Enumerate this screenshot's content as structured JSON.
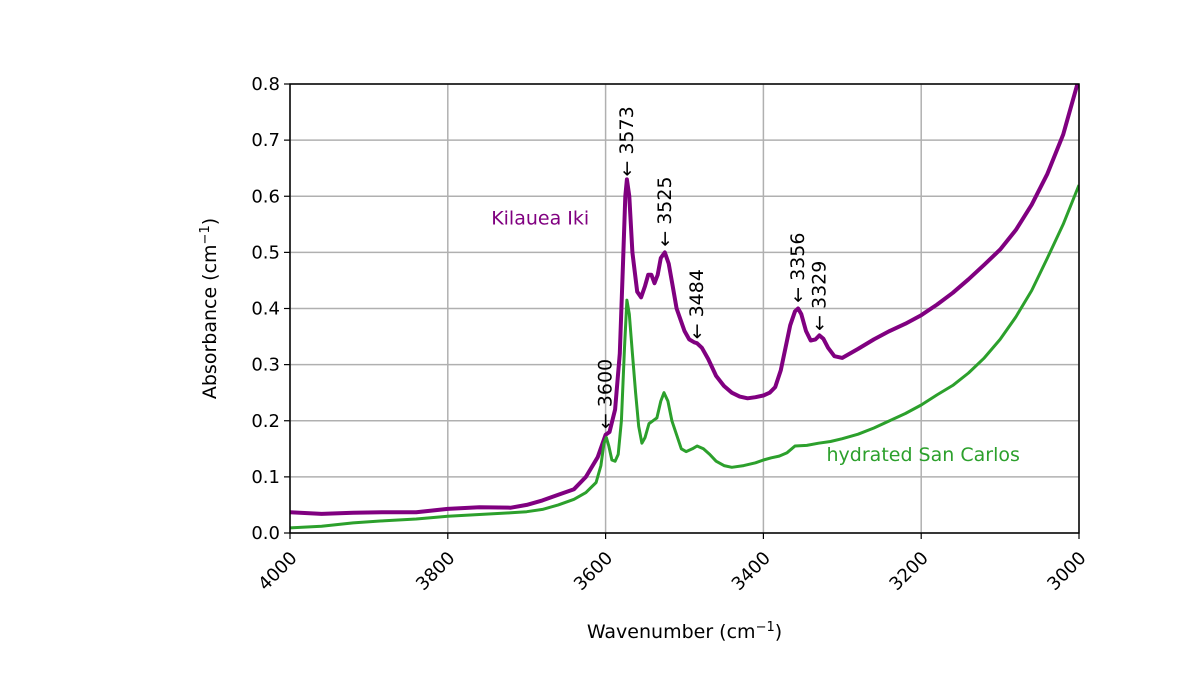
{
  "chart_data": {
    "type": "line",
    "title": "",
    "xlabel": "Wavenumber (cm",
    "xlabel_sup": "−1",
    "xlabel_close": ")",
    "ylabel": "Absorbance (cm",
    "ylabel_sup": "−1",
    "ylabel_close": ")",
    "xlim": [
      4000,
      3000
    ],
    "ylim": [
      0,
      0.8
    ],
    "x_ticks": [
      4000,
      3800,
      3600,
      3400,
      3200,
      3000
    ],
    "y_ticks": [
      0.0,
      0.1,
      0.2,
      0.3,
      0.4,
      0.5,
      0.6,
      0.7,
      0.8
    ],
    "y_tick_labels": [
      "0.0",
      "0.1",
      "0.2",
      "0.3",
      "0.4",
      "0.5",
      "0.6",
      "0.7",
      "0.8"
    ],
    "grid": true,
    "series": [
      {
        "name": "Kilauea Iki",
        "color": "#800080",
        "points": [
          [
            4000,
            0.037
          ],
          [
            3960,
            0.034
          ],
          [
            3920,
            0.036
          ],
          [
            3880,
            0.037
          ],
          [
            3840,
            0.037
          ],
          [
            3800,
            0.043
          ],
          [
            3760,
            0.046
          ],
          [
            3720,
            0.045
          ],
          [
            3700,
            0.05
          ],
          [
            3680,
            0.058
          ],
          [
            3660,
            0.068
          ],
          [
            3640,
            0.078
          ],
          [
            3625,
            0.1
          ],
          [
            3610,
            0.135
          ],
          [
            3600,
            0.175
          ],
          [
            3595,
            0.18
          ],
          [
            3588,
            0.22
          ],
          [
            3582,
            0.32
          ],
          [
            3578,
            0.48
          ],
          [
            3575,
            0.6
          ],
          [
            3573,
            0.63
          ],
          [
            3570,
            0.6
          ],
          [
            3566,
            0.5
          ],
          [
            3560,
            0.43
          ],
          [
            3555,
            0.42
          ],
          [
            3550,
            0.44
          ],
          [
            3546,
            0.46
          ],
          [
            3542,
            0.46
          ],
          [
            3538,
            0.445
          ],
          [
            3534,
            0.46
          ],
          [
            3530,
            0.49
          ],
          [
            3525,
            0.5
          ],
          [
            3520,
            0.48
          ],
          [
            3515,
            0.44
          ],
          [
            3510,
            0.4
          ],
          [
            3500,
            0.36
          ],
          [
            3494,
            0.345
          ],
          [
            3488,
            0.34
          ],
          [
            3484,
            0.338
          ],
          [
            3478,
            0.33
          ],
          [
            3470,
            0.31
          ],
          [
            3460,
            0.28
          ],
          [
            3450,
            0.262
          ],
          [
            3440,
            0.25
          ],
          [
            3430,
            0.243
          ],
          [
            3420,
            0.24
          ],
          [
            3410,
            0.242
          ],
          [
            3400,
            0.245
          ],
          [
            3392,
            0.25
          ],
          [
            3385,
            0.26
          ],
          [
            3378,
            0.29
          ],
          [
            3372,
            0.33
          ],
          [
            3366,
            0.37
          ],
          [
            3360,
            0.395
          ],
          [
            3356,
            0.4
          ],
          [
            3352,
            0.39
          ],
          [
            3346,
            0.36
          ],
          [
            3340,
            0.343
          ],
          [
            3334,
            0.345
          ],
          [
            3329,
            0.352
          ],
          [
            3324,
            0.346
          ],
          [
            3318,
            0.33
          ],
          [
            3310,
            0.315
          ],
          [
            3300,
            0.312
          ],
          [
            3280,
            0.328
          ],
          [
            3260,
            0.345
          ],
          [
            3240,
            0.36
          ],
          [
            3220,
            0.373
          ],
          [
            3200,
            0.388
          ],
          [
            3180,
            0.407
          ],
          [
            3160,
            0.428
          ],
          [
            3140,
            0.452
          ],
          [
            3120,
            0.478
          ],
          [
            3100,
            0.505
          ],
          [
            3080,
            0.54
          ],
          [
            3060,
            0.585
          ],
          [
            3040,
            0.64
          ],
          [
            3020,
            0.71
          ],
          [
            3000,
            0.81
          ]
        ]
      },
      {
        "name": "hydrated San Carlos",
        "color": "#2ca02c",
        "points": [
          [
            4000,
            0.009
          ],
          [
            3960,
            0.012
          ],
          [
            3920,
            0.018
          ],
          [
            3880,
            0.022
          ],
          [
            3840,
            0.025
          ],
          [
            3800,
            0.03
          ],
          [
            3760,
            0.033
          ],
          [
            3720,
            0.036
          ],
          [
            3700,
            0.038
          ],
          [
            3680,
            0.042
          ],
          [
            3660,
            0.05
          ],
          [
            3640,
            0.06
          ],
          [
            3625,
            0.072
          ],
          [
            3612,
            0.09
          ],
          [
            3606,
            0.12
          ],
          [
            3602,
            0.16
          ],
          [
            3599,
            0.17
          ],
          [
            3596,
            0.155
          ],
          [
            3592,
            0.13
          ],
          [
            3588,
            0.128
          ],
          [
            3584,
            0.14
          ],
          [
            3580,
            0.2
          ],
          [
            3576,
            0.33
          ],
          [
            3573,
            0.415
          ],
          [
            3570,
            0.39
          ],
          [
            3566,
            0.32
          ],
          [
            3562,
            0.25
          ],
          [
            3558,
            0.19
          ],
          [
            3554,
            0.16
          ],
          [
            3550,
            0.17
          ],
          [
            3545,
            0.195
          ],
          [
            3540,
            0.2
          ],
          [
            3535,
            0.205
          ],
          [
            3530,
            0.235
          ],
          [
            3526,
            0.25
          ],
          [
            3521,
            0.235
          ],
          [
            3516,
            0.2
          ],
          [
            3510,
            0.175
          ],
          [
            3504,
            0.15
          ],
          [
            3498,
            0.145
          ],
          [
            3490,
            0.15
          ],
          [
            3484,
            0.155
          ],
          [
            3476,
            0.15
          ],
          [
            3468,
            0.14
          ],
          [
            3460,
            0.128
          ],
          [
            3450,
            0.12
          ],
          [
            3440,
            0.117
          ],
          [
            3425,
            0.12
          ],
          [
            3410,
            0.125
          ],
          [
            3400,
            0.13
          ],
          [
            3390,
            0.134
          ],
          [
            3380,
            0.137
          ],
          [
            3370,
            0.143
          ],
          [
            3360,
            0.155
          ],
          [
            3345,
            0.156
          ],
          [
            3330,
            0.16
          ],
          [
            3315,
            0.163
          ],
          [
            3300,
            0.168
          ],
          [
            3280,
            0.176
          ],
          [
            3260,
            0.187
          ],
          [
            3240,
            0.2
          ],
          [
            3220,
            0.213
          ],
          [
            3200,
            0.228
          ],
          [
            3180,
            0.246
          ],
          [
            3160,
            0.263
          ],
          [
            3140,
            0.285
          ],
          [
            3120,
            0.312
          ],
          [
            3100,
            0.345
          ],
          [
            3080,
            0.385
          ],
          [
            3060,
            0.432
          ],
          [
            3040,
            0.49
          ],
          [
            3020,
            0.55
          ],
          [
            3000,
            0.62
          ]
        ]
      }
    ],
    "series_labels": [
      {
        "text": "Kilauea Iki",
        "x": 3745,
        "y": 0.55,
        "color": "#800080"
      },
      {
        "text": "hydrated San Carlos",
        "x": 3320,
        "y": 0.128,
        "color": "#2ca02c"
      }
    ],
    "annotations": [
      {
        "text": "← 3600",
        "x": 3600,
        "y": 0.185
      },
      {
        "text": "← 3573",
        "x": 3573,
        "y": 0.635
      },
      {
        "text": "← 3525",
        "x": 3525,
        "y": 0.51
      },
      {
        "text": "← 3484",
        "x": 3484,
        "y": 0.345
      },
      {
        "text": "← 3356",
        "x": 3356,
        "y": 0.41
      },
      {
        "text": "← 3329",
        "x": 3329,
        "y": 0.36
      }
    ]
  }
}
